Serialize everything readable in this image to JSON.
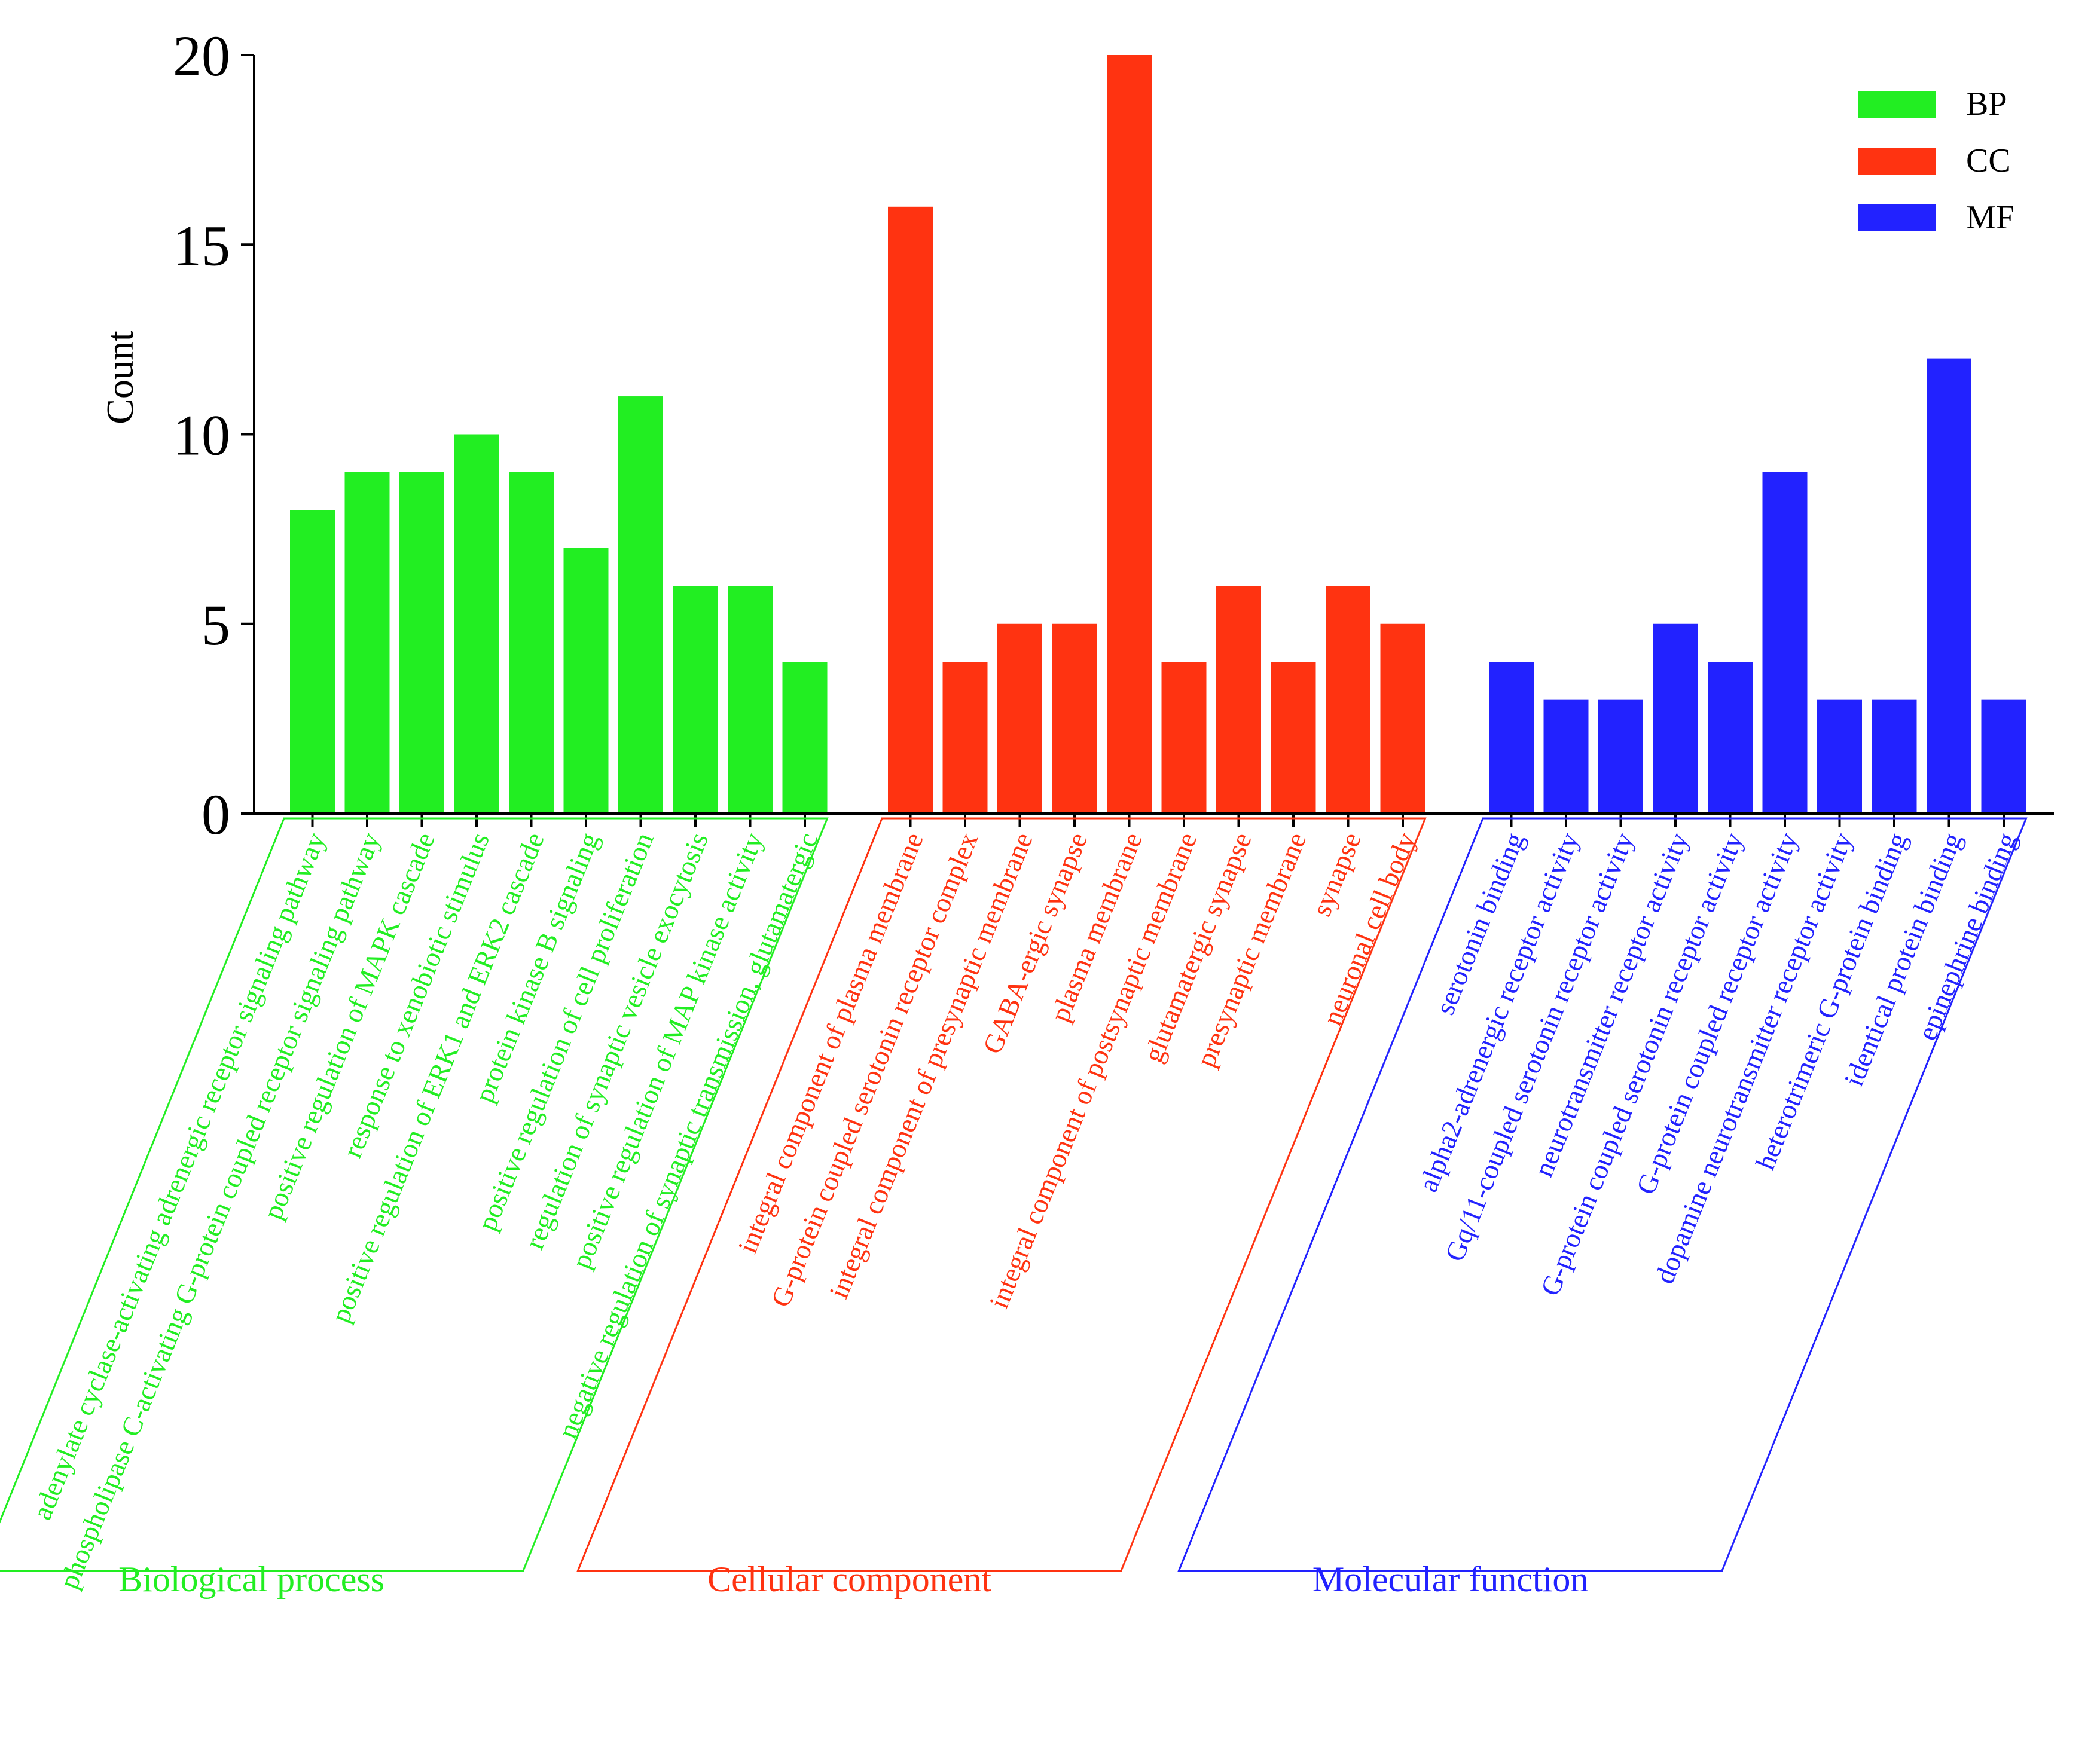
{
  "chart_data": {
    "type": "bar",
    "ylabel": "Count",
    "ylim": [
      0,
      20
    ],
    "yticks": [
      0,
      5,
      10,
      15,
      20
    ],
    "legend": {
      "placement": "top-right",
      "entries": [
        {
          "name": "BP",
          "color": "#22EE22"
        },
        {
          "name": "CC",
          "color": "#FF3311"
        },
        {
          "name": "MF",
          "color": "#2222FF"
        }
      ]
    },
    "groups": [
      {
        "key": "BP",
        "label": "Biological process",
        "color": "#22EE22",
        "categories": [
          "adenylate cyclase-activating adrenergic receptor signaling pathway",
          "phospholipase C-activating G-protein coupled receptor signaling pathway",
          "positive regulation of MAPK cascade",
          "response to xenobiotic stimulus",
          "positive regulation of ERK1 and ERK2 cascade",
          "protein kinase B signaling",
          "positive regulation of cell proliferation",
          "regulation of synaptic vesicle exocytosis",
          "positive regulation of MAP kinase activity",
          "negative regulation of synaptic transmission, glutamatergic"
        ],
        "values": [
          8,
          9,
          9,
          10,
          9,
          7,
          11,
          6,
          6,
          4
        ]
      },
      {
        "key": "CC",
        "label": "Cellular component",
        "color": "#FF3311",
        "categories": [
          "integral component of plasma membrane",
          "G-protein coupled serotonin receptor complex",
          "integral component of presynaptic membrane",
          "GABA-ergic synapse",
          "plasma membrane",
          "integral component of postsynaptic membrane",
          "glutamatergic synapse",
          "presynaptic membrane",
          "synapse",
          "neuronal cell body"
        ],
        "values": [
          16,
          4,
          5,
          5,
          20,
          4,
          6,
          4,
          6,
          5
        ]
      },
      {
        "key": "MF",
        "label": "Molecular function",
        "color": "#2222FF",
        "categories": [
          "serotonin binding",
          "alpha2-adrenergic receptor activity",
          "Gq/11-coupled serotonin receptor activity",
          "neurotransmitter receptor activity",
          "G-protein coupled serotonin receptor activity",
          "G-protein coupled receptor activity",
          "dopamine neurotransmitter receptor activity",
          "heterotrimeric G-protein binding",
          "identical protein binding",
          "epinephrine binding"
        ],
        "values": [
          4,
          3,
          3,
          5,
          4,
          9,
          3,
          3,
          12,
          3
        ]
      }
    ]
  }
}
